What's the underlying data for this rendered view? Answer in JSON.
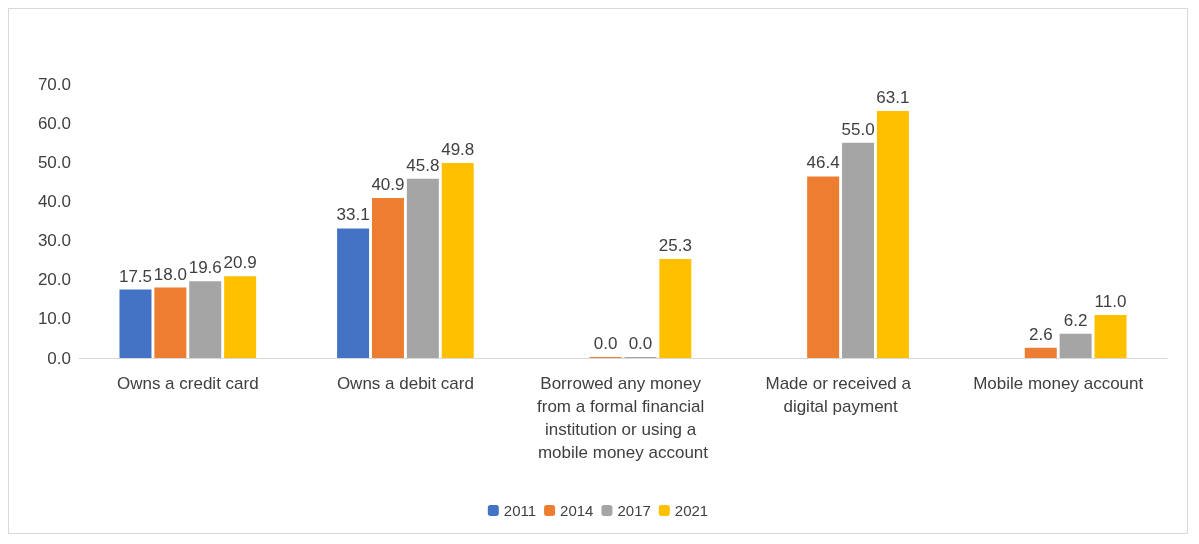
{
  "chart_data": {
    "type": "bar",
    "categories": [
      "Owns a credit card",
      "Owns a debit card",
      "Borrowed any money from a formal financial institution or using a mobile money account",
      "Made or received a digital payment",
      "Mobile money account"
    ],
    "series": [
      {
        "name": "2011",
        "color": "#4472c4",
        "values": [
          17.5,
          33.1,
          null,
          null,
          null
        ],
        "value_labels": [
          "17.5",
          "33.1",
          null,
          null,
          null
        ]
      },
      {
        "name": "2014",
        "color": "#ed7d31",
        "values": [
          18.0,
          40.9,
          0.0,
          46.4,
          2.6
        ],
        "value_labels": [
          "18.0",
          "40.9",
          "0.0",
          "46.4",
          "2.6"
        ]
      },
      {
        "name": "2017",
        "color": "#a5a5a5",
        "values": [
          19.6,
          45.8,
          0.0,
          55.0,
          6.2
        ],
        "value_labels": [
          "19.6",
          "45.8",
          "0.0",
          "55.0",
          "6.2"
        ]
      },
      {
        "name": "2021",
        "color": "#ffc000",
        "values": [
          20.9,
          49.8,
          25.3,
          63.1,
          11.0
        ],
        "value_labels": [
          "20.9",
          "49.8",
          "25.3",
          "63.1",
          "11.0"
        ]
      }
    ],
    "ylim": [
      0,
      70
    ],
    "yticks": [
      {
        "value": 0,
        "label": "0.0"
      },
      {
        "value": 10,
        "label": "10.0"
      },
      {
        "value": 20,
        "label": "20.0"
      },
      {
        "value": 30,
        "label": "30.0"
      },
      {
        "value": 40,
        "label": "40.0"
      },
      {
        "value": 50,
        "label": "50.0"
      },
      {
        "value": 60,
        "label": "60.0"
      },
      {
        "value": 70,
        "label": "70.0"
      }
    ],
    "grid": false,
    "legend": "bottom"
  }
}
